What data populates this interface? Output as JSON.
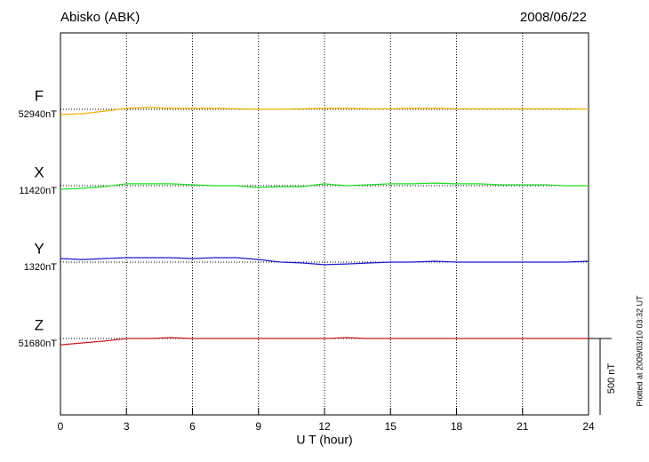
{
  "chart_data": {
    "type": "line",
    "title": "Abisko (ABK)",
    "date": "2008/06/22",
    "xlabel": "U T (hour)",
    "footnote": "Plotted at 2009/03/10 03:32 UT",
    "scale_bar": {
      "value": 500,
      "label": "500 nT"
    },
    "x": [
      0,
      1,
      2,
      3,
      4,
      5,
      6,
      7,
      8,
      9,
      10,
      11,
      12,
      13,
      14,
      15,
      16,
      17,
      18,
      19,
      20,
      21,
      22,
      23,
      24
    ],
    "xlim": [
      0,
      24
    ],
    "xticks": [
      0,
      3,
      6,
      9,
      12,
      15,
      18,
      21,
      24
    ],
    "ylim": [
      0,
      2500
    ],
    "grid": true,
    "series": [
      {
        "name": "F",
        "color": "#f0b000",
        "baseline": 52940,
        "baseline_label": "52940nT",
        "values": [
          52905,
          52911,
          52928,
          52946,
          52952,
          52946,
          52946,
          52946,
          52943,
          52940,
          52940,
          52943,
          52946,
          52946,
          52943,
          52943,
          52946,
          52946,
          52943,
          52943,
          52943,
          52943,
          52943,
          52943,
          52940
        ]
      },
      {
        "name": "X",
        "color": "#22dd22",
        "baseline": 11420,
        "baseline_label": "11420nT",
        "values": [
          11397,
          11403,
          11414,
          11432,
          11432,
          11432,
          11426,
          11420,
          11420,
          11408,
          11414,
          11414,
          11432,
          11420,
          11426,
          11432,
          11432,
          11437,
          11432,
          11432,
          11426,
          11426,
          11426,
          11420,
          11420
        ]
      },
      {
        "name": "Y",
        "color": "#1a1acc",
        "baseline": 1320,
        "baseline_label": "1320nT",
        "values": [
          1343,
          1337,
          1343,
          1349,
          1349,
          1349,
          1343,
          1349,
          1349,
          1337,
          1320,
          1314,
          1303,
          1308,
          1314,
          1320,
          1320,
          1326,
          1320,
          1320,
          1320,
          1320,
          1320,
          1320,
          1326
        ]
      },
      {
        "name": "Z",
        "color": "#cc1a1a",
        "baseline": 51680,
        "baseline_label": "51680nT",
        "values": [
          51639,
          51651,
          51663,
          51680,
          51680,
          51686,
          51680,
          51680,
          51680,
          51680,
          51680,
          51680,
          51680,
          51686,
          51680,
          51680,
          51680,
          51680,
          51680,
          51680,
          51680,
          51680,
          51680,
          51680,
          51680
        ]
      }
    ]
  }
}
